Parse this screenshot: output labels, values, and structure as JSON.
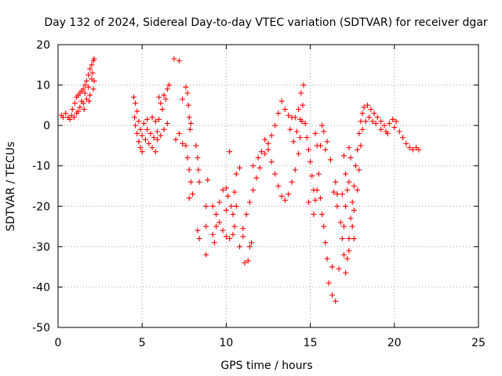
{
  "chart_data": {
    "type": "scatter",
    "title": "Day 132 of 2024, Sidereal Day-to-day VTEC variation (SDTVAR) for receiver dgar",
    "xlabel": "GPS time / hours",
    "ylabel": "SDTVAR / TECUs",
    "xlim": [
      0,
      25
    ],
    "ylim": [
      -50,
      20
    ],
    "xticks": [
      0,
      5,
      10,
      15,
      20,
      25
    ],
    "yticks": [
      -50,
      -40,
      -30,
      -20,
      -10,
      0,
      10,
      20
    ],
    "grid": true,
    "legend": "none",
    "marker": "plus",
    "color": "#ff0000",
    "series": [
      {
        "points": [
          [
            0.2,
            2.5
          ],
          [
            0.3,
            2.0
          ],
          [
            0.45,
            3.0
          ],
          [
            0.6,
            2.0
          ],
          [
            0.7,
            1.5
          ],
          [
            0.8,
            2.5
          ],
          [
            0.95,
            2.0
          ],
          [
            1.1,
            3.0
          ],
          [
            0.85,
            4.0
          ],
          [
            1.0,
            5.5
          ],
          [
            1.1,
            7.0
          ],
          [
            1.2,
            7.5
          ],
          [
            1.3,
            8.0
          ],
          [
            1.4,
            8.5
          ],
          [
            1.5,
            9.0
          ],
          [
            1.6,
            10.0
          ],
          [
            1.7,
            11.0
          ],
          [
            1.8,
            12.5
          ],
          [
            1.9,
            14.0
          ],
          [
            2.0,
            15.0
          ],
          [
            2.1,
            16.0
          ],
          [
            2.15,
            16.5
          ],
          [
            1.3,
            4.5
          ],
          [
            1.5,
            5.5
          ],
          [
            1.7,
            6.5
          ],
          [
            1.9,
            7.5
          ],
          [
            2.1,
            9.0
          ],
          [
            2.15,
            11.0
          ],
          [
            1.4,
            6.0
          ],
          [
            1.6,
            8.0
          ],
          [
            1.8,
            9.5
          ],
          [
            2.0,
            11.5
          ],
          [
            1.2,
            3.5
          ],
          [
            1.55,
            4.0
          ],
          [
            1.85,
            6.0
          ],
          [
            2.05,
            13.0
          ]
        ]
      },
      {
        "points": [
          [
            4.5,
            7.0
          ],
          [
            4.6,
            5.5
          ],
          [
            4.7,
            3.5
          ],
          [
            4.8,
            1.0
          ],
          [
            4.9,
            -1.0
          ],
          [
            5.0,
            -2.5
          ],
          [
            5.2,
            -3.5
          ],
          [
            5.4,
            -4.5
          ],
          [
            5.6,
            -5.5
          ],
          [
            5.8,
            -6.5
          ],
          [
            4.6,
            0.0
          ],
          [
            4.7,
            -2.0
          ],
          [
            4.8,
            -4.0
          ],
          [
            4.9,
            -5.5
          ],
          [
            5.0,
            -6.5
          ],
          [
            4.55,
            2.0
          ],
          [
            5.1,
            0.5
          ],
          [
            5.3,
            -1.0
          ],
          [
            5.5,
            -2.0
          ],
          [
            5.7,
            -3.0
          ],
          [
            5.9,
            -3.5
          ],
          [
            6.1,
            -2.5
          ],
          [
            6.3,
            -1.0
          ],
          [
            6.5,
            0.5
          ],
          [
            5.6,
            2.0
          ],
          [
            5.8,
            1.0
          ],
          [
            6.0,
            1.5
          ],
          [
            6.2,
            4.0
          ],
          [
            6.4,
            6.5
          ],
          [
            6.5,
            9.0
          ],
          [
            6.6,
            10.0
          ],
          [
            6.1,
            5.5
          ],
          [
            6.3,
            7.5
          ],
          [
            6.0,
            7.0
          ],
          [
            5.3,
            1.5
          ],
          [
            5.9,
            -1.5
          ]
        ]
      },
      {
        "points": [
          [
            6.9,
            16.5
          ],
          [
            7.2,
            16.0
          ],
          [
            7.0,
            -3.5
          ],
          [
            7.2,
            -2.0
          ],
          [
            7.4,
            6.5
          ],
          [
            7.6,
            9.5
          ],
          [
            7.7,
            8.0
          ],
          [
            7.75,
            5.0
          ],
          [
            7.8,
            2.0
          ],
          [
            7.85,
            -1.0
          ],
          [
            7.6,
            -5.0
          ],
          [
            7.7,
            -8.0
          ],
          [
            7.8,
            -11.0
          ],
          [
            7.9,
            -14.0
          ],
          [
            8.0,
            -17.0
          ],
          [
            7.8,
            -18.0
          ],
          [
            8.2,
            -5.0
          ],
          [
            8.3,
            -8.0
          ],
          [
            8.35,
            -11.0
          ],
          [
            8.4,
            -14.0
          ],
          [
            8.3,
            -26.0
          ],
          [
            8.4,
            -28.0
          ],
          [
            8.9,
            -13.5
          ],
          [
            8.8,
            -20.0
          ],
          [
            8.8,
            -25.0
          ],
          [
            8.8,
            -32.0
          ],
          [
            7.4,
            -4.5
          ],
          [
            7.9,
            0.5
          ]
        ]
      },
      {
        "points": [
          [
            9.2,
            -20.0
          ],
          [
            9.4,
            -22.0
          ],
          [
            9.6,
            -24.0
          ],
          [
            9.8,
            -26.0
          ],
          [
            10.0,
            -27.5
          ],
          [
            10.2,
            -28.0
          ],
          [
            10.4,
            -27.0
          ],
          [
            10.5,
            -25.0
          ],
          [
            10.4,
            -22.0
          ],
          [
            10.3,
            -20.0
          ],
          [
            10.1,
            -17.5
          ],
          [
            10.0,
            -15.5
          ],
          [
            9.8,
            -16.0
          ],
          [
            9.6,
            -19.0
          ],
          [
            9.4,
            -25.0
          ],
          [
            9.2,
            -27.0
          ],
          [
            9.3,
            -29.0
          ],
          [
            10.2,
            -6.5
          ],
          [
            10.0,
            -21.0
          ],
          [
            10.6,
            -20.0
          ],
          [
            10.5,
            -16.5
          ],
          [
            10.6,
            -12.0
          ],
          [
            10.8,
            -10.5
          ],
          [
            11.0,
            -27.5
          ],
          [
            11.1,
            -34.0
          ],
          [
            11.3,
            -33.5
          ],
          [
            11.4,
            -30.0
          ],
          [
            11.5,
            -29.0
          ],
          [
            11.2,
            -22.0
          ],
          [
            11.4,
            -19.0
          ],
          [
            11.6,
            -16.0
          ],
          [
            11.8,
            -13.0
          ],
          [
            11.6,
            -10.0
          ],
          [
            11.9,
            -8.0
          ],
          [
            12.1,
            -6.5
          ],
          [
            12.3,
            -7.0
          ],
          [
            12.0,
            -10.5
          ],
          [
            10.8,
            -30.0
          ],
          [
            11.0,
            -25.5
          ]
        ]
      },
      {
        "points": [
          [
            12.3,
            -3.5
          ],
          [
            12.5,
            -6.0
          ],
          [
            12.7,
            -9.0
          ],
          [
            12.9,
            -12.0
          ],
          [
            13.1,
            -15.0
          ],
          [
            13.3,
            -17.5
          ],
          [
            13.5,
            -18.5
          ],
          [
            13.7,
            -17.0
          ],
          [
            13.9,
            -14.0
          ],
          [
            14.1,
            -11.0
          ],
          [
            14.3,
            -7.0
          ],
          [
            14.4,
            -3.0
          ],
          [
            14.5,
            1.0
          ],
          [
            14.55,
            5.0
          ],
          [
            14.6,
            10.0
          ],
          [
            14.45,
            8.0
          ],
          [
            14.3,
            4.0
          ],
          [
            14.1,
            2.0
          ],
          [
            13.9,
            2.0
          ],
          [
            13.7,
            2.5
          ],
          [
            13.5,
            4.0
          ],
          [
            13.3,
            6.0
          ],
          [
            13.1,
            3.0
          ],
          [
            12.9,
            0.0
          ],
          [
            12.7,
            -2.5
          ],
          [
            12.5,
            -4.5
          ],
          [
            13.8,
            -1.0
          ],
          [
            14.0,
            -4.0
          ],
          [
            14.2,
            -1.5
          ],
          [
            14.4,
            1.5
          ],
          [
            14.7,
            0.5
          ],
          [
            14.8,
            -3.0
          ],
          [
            14.9,
            -6.0
          ],
          [
            15.0,
            -9.0
          ],
          [
            15.1,
            -12.5
          ],
          [
            15.2,
            -16.0
          ],
          [
            15.3,
            -18.5
          ],
          [
            15.4,
            -16.0
          ],
          [
            15.5,
            -12.0
          ],
          [
            15.4,
            -5.0
          ],
          [
            15.3,
            -2.0
          ],
          [
            15.6,
            -5.0
          ],
          [
            15.7,
            0.0
          ],
          [
            15.8,
            -1.5
          ],
          [
            15.9,
            -6.0
          ],
          [
            15.6,
            -18.0
          ],
          [
            15.7,
            -22.0
          ],
          [
            15.8,
            -25.0
          ],
          [
            15.9,
            -29.0
          ],
          [
            16.0,
            -33.0
          ],
          [
            16.1,
            -39.0
          ],
          [
            16.3,
            -42.0
          ],
          [
            16.5,
            -43.5
          ],
          [
            16.3,
            -35.0
          ],
          [
            16.7,
            -35.5
          ],
          [
            16.4,
            -16.5
          ],
          [
            16.6,
            -17.0
          ],
          [
            16.2,
            -8.5
          ],
          [
            16.0,
            -4.0
          ],
          [
            16.5,
            -14.0
          ],
          [
            15.2,
            -22.0
          ],
          [
            14.9,
            -19.0
          ]
        ]
      },
      {
        "points": [
          [
            16.6,
            -20.0
          ],
          [
            16.8,
            -24.0
          ],
          [
            16.9,
            -28.0
          ],
          [
            17.0,
            -32.0
          ],
          [
            17.1,
            -36.5
          ],
          [
            17.2,
            -33.0
          ],
          [
            17.3,
            -28.0
          ],
          [
            17.4,
            -23.0
          ],
          [
            17.5,
            -19.0
          ],
          [
            17.6,
            -15.0
          ],
          [
            17.7,
            -10.0
          ],
          [
            17.8,
            -6.0
          ],
          [
            17.9,
            -2.0
          ],
          [
            18.0,
            1.0
          ],
          [
            18.1,
            3.0
          ],
          [
            18.2,
            4.5
          ],
          [
            18.4,
            5.0
          ],
          [
            18.6,
            4.0
          ],
          [
            18.8,
            3.0
          ],
          [
            19.0,
            2.0
          ],
          [
            19.2,
            1.0
          ],
          [
            19.4,
            0.0
          ],
          [
            17.0,
            -25.0
          ],
          [
            17.1,
            -20.0
          ],
          [
            17.2,
            -16.0
          ],
          [
            17.3,
            -14.0
          ],
          [
            17.5,
            -25.0
          ],
          [
            17.6,
            -21.0
          ],
          [
            17.8,
            -16.0
          ],
          [
            17.9,
            -11.0
          ],
          [
            18.0,
            -5.0
          ],
          [
            18.1,
            -1.0
          ],
          [
            18.3,
            1.0
          ],
          [
            18.5,
            2.0
          ],
          [
            18.7,
            1.0
          ],
          [
            18.9,
            0.5
          ],
          [
            17.0,
            -7.5
          ],
          [
            17.3,
            -5.5
          ],
          [
            17.4,
            -8.0
          ],
          [
            17.1,
            -12.0
          ],
          [
            16.9,
            -17.0
          ],
          [
            17.3,
            -31.0
          ],
          [
            17.6,
            -28.0
          ]
        ]
      },
      {
        "points": [
          [
            19.2,
            -1.0
          ],
          [
            19.5,
            -1.5
          ],
          [
            19.7,
            0.5
          ],
          [
            19.9,
            1.5
          ],
          [
            20.1,
            1.0
          ],
          [
            20.3,
            -1.5
          ],
          [
            20.5,
            -3.0
          ],
          [
            20.7,
            -4.5
          ],
          [
            20.9,
            -5.5
          ],
          [
            21.1,
            -6.0
          ],
          [
            21.3,
            -5.5
          ],
          [
            21.45,
            -6.0
          ],
          [
            20.0,
            -0.5
          ],
          [
            19.6,
            -2.0
          ]
        ]
      }
    ]
  }
}
